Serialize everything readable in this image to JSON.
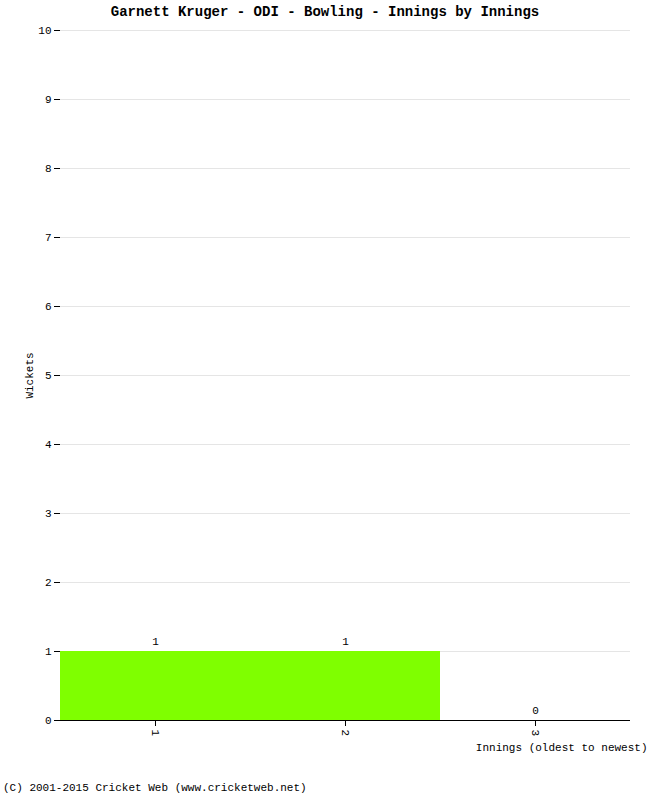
{
  "chart_data": {
    "type": "bar",
    "title": "Garnett Kruger - ODI - Bowling - Innings by Innings",
    "x_label": "Innings (oldest to newest)",
    "y_label": "Wickets",
    "caption": "(C) 2001-2015 Cricket Web (www.cricketweb.net)",
    "categories": [
      "1",
      "2",
      "3"
    ],
    "values": [
      1,
      1,
      0
    ],
    "color": "#7fff00",
    "ylim": [
      0,
      10
    ],
    "yticks": [
      0,
      1,
      2,
      3,
      4,
      5,
      6,
      7,
      8,
      9,
      10
    ],
    "grid": true,
    "data_labels": true
  }
}
